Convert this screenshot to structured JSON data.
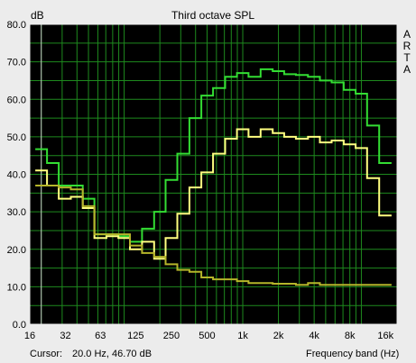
{
  "chart_data": {
    "type": "line",
    "title": "Third octave SPL",
    "ylabel": "dB",
    "xlabel": "Frequency band (Hz)",
    "brand": "ARTA",
    "x_scale": "log",
    "xlim": [
      16,
      20000
    ],
    "ylim": [
      0,
      80
    ],
    "y_ticks": [
      0,
      10,
      20,
      30,
      40,
      50,
      60,
      70,
      80
    ],
    "y_tick_labels": [
      "0.0",
      "10.0",
      "20.0",
      "30.0",
      "40.0",
      "50.0",
      "60.0",
      "70.0",
      "80.0"
    ],
    "x_tick_labels": [
      {
        "v": 16,
        "label": "16"
      },
      {
        "v": 32,
        "label": "32"
      },
      {
        "v": 63,
        "label": "63"
      },
      {
        "v": 125,
        "label": "125"
      },
      {
        "v": 250,
        "label": "250"
      },
      {
        "v": 500,
        "label": "500"
      },
      {
        "v": 1000,
        "label": "1k"
      },
      {
        "v": 2000,
        "label": "2k"
      },
      {
        "v": 4000,
        "label": "4k"
      },
      {
        "v": 8000,
        "label": "8k"
      },
      {
        "v": 16000,
        "label": "16k"
      }
    ],
    "bands": [
      20,
      25,
      31.5,
      40,
      50,
      63,
      80,
      100,
      125,
      160,
      200,
      250,
      315,
      400,
      500,
      630,
      800,
      1000,
      1250,
      1600,
      2000,
      2500,
      3150,
      4000,
      5000,
      6300,
      8000,
      10000,
      12500,
      16000
    ],
    "grid": true,
    "series": [
      {
        "color": "#33dd33",
        "values": [
          46.7,
          43.0,
          37.0,
          37.0,
          33.5,
          24.0,
          24.0,
          23.5,
          22.0,
          25.5,
          30.0,
          38.5,
          45.5,
          55.0,
          61.0,
          63.0,
          66.0,
          67.0,
          66.0,
          68.0,
          67.5,
          66.7,
          66.5,
          66.0,
          65.0,
          64.5,
          62.5,
          61.5,
          53.0,
          43.0
        ]
      },
      {
        "color": "#ffff80",
        "values": [
          41.0,
          37.0,
          33.5,
          34.0,
          31.0,
          23.0,
          23.5,
          23.0,
          20.0,
          22.0,
          17.5,
          23.0,
          29.5,
          36.5,
          40.5,
          45.5,
          49.5,
          52.0,
          50.0,
          52.0,
          51.0,
          50.0,
          49.5,
          50.0,
          48.5,
          49.0,
          48.0,
          47.0,
          39.0,
          29.0
        ]
      },
      {
        "color": "#b5b52a",
        "values": [
          37.0,
          37.0,
          36.5,
          36.0,
          31.5,
          24.0,
          24.0,
          24.0,
          21.0,
          19.0,
          18.0,
          16.0,
          14.5,
          14.0,
          12.5,
          12.0,
          12.0,
          11.5,
          11.0,
          11.0,
          10.8,
          10.8,
          10.5,
          11.0,
          10.5,
          10.5,
          10.5,
          10.5,
          10.5,
          10.5
        ]
      }
    ],
    "cursor_x": 20.0
  },
  "status": {
    "cursor_label": "Cursor:",
    "cursor_value": "20.0 Hz, 46.70 dB",
    "axis_caption": "Frequency band (Hz)"
  },
  "colors": {
    "plot_background": "#000000",
    "grid": "#1e8a1e",
    "frame": "#f0f0f0",
    "cursor": "#c8c8c8",
    "window": "#ececec"
  }
}
